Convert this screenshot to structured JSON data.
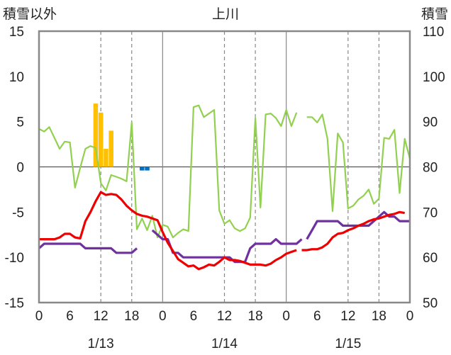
{
  "chart_data": {
    "type": "line",
    "title": "上川",
    "ylabel_left": "積雪以外",
    "ylabel_right": "積雪",
    "ylim_left": [
      -15,
      15
    ],
    "ylim_right": [
      50,
      110
    ],
    "yticks_left": [
      15,
      10,
      5,
      0,
      -5,
      -10,
      -15
    ],
    "yticks_right": [
      110,
      100,
      90,
      80,
      70,
      60,
      50
    ],
    "x_range_hours": [
      0,
      72
    ],
    "x_tick_labels": [
      "0",
      "6",
      "12",
      "18",
      "0",
      "6",
      "12",
      "18",
      "0",
      "6",
      "12",
      "18",
      "0"
    ],
    "day_labels": [
      {
        "label": "1/13",
        "hour": 12
      },
      {
        "label": "1/14",
        "hour": 36
      },
      {
        "label": "1/15",
        "hour": 60
      }
    ],
    "day_boundaries": [
      24,
      48
    ],
    "dashed_gridlines": [
      12,
      18,
      36,
      42,
      60,
      66
    ],
    "colors": {
      "temperature": "#ee0000",
      "snow_depth": "#7030a0",
      "wind": "#92d050",
      "snowfall": "#ffc000",
      "precip": "#0070c0",
      "frame": "#888888",
      "grid": "#888888"
    },
    "series": [
      {
        "key": "temperature",
        "axis": "left",
        "points": [
          [
            0,
            -8
          ],
          [
            1,
            -8
          ],
          [
            2,
            -8
          ],
          [
            3,
            -8
          ],
          [
            4,
            -7.8
          ],
          [
            5,
            -7.4
          ],
          [
            6,
            -7.4
          ],
          [
            7,
            -7.8
          ],
          [
            8,
            -7.9
          ],
          [
            9,
            -6
          ],
          [
            10,
            -5
          ],
          [
            11,
            -3.8
          ],
          [
            12,
            -2.8
          ],
          [
            13,
            -3.1
          ],
          [
            14,
            -3
          ],
          [
            15,
            -3.1
          ],
          [
            16,
            -3.6
          ],
          [
            17,
            -4.3
          ],
          [
            18,
            -4.8
          ],
          [
            19,
            -5.2
          ],
          [
            20,
            -5.4
          ],
          [
            21,
            -5.5
          ],
          [
            22,
            -5.7
          ],
          [
            23,
            -5.9
          ],
          [
            24,
            -7.2
          ],
          [
            25,
            -8.4
          ],
          [
            26,
            -9.3
          ],
          [
            27,
            -10.2
          ],
          [
            28,
            -10.6
          ],
          [
            29,
            -11
          ],
          [
            30,
            -10.9
          ],
          [
            31,
            -11.3
          ],
          [
            32,
            -11.1
          ],
          [
            33,
            -10.8
          ],
          [
            34,
            -10.9
          ],
          [
            35,
            -10.5
          ],
          [
            36,
            -10
          ],
          [
            37,
            -10.3
          ],
          [
            38,
            -10.3
          ],
          [
            39,
            -10.4
          ],
          [
            40,
            -10.6
          ],
          [
            41,
            -10.8
          ],
          [
            42,
            -10.8
          ],
          [
            43,
            -10.8
          ],
          [
            44,
            -10.9
          ],
          [
            45,
            -10.7
          ],
          [
            46,
            -10.3
          ],
          [
            47,
            -10
          ],
          [
            48,
            -9.6
          ],
          [
            49,
            -9.4
          ],
          [
            50,
            -9.2
          ],
          null,
          [
            51,
            -9.2
          ],
          [
            52,
            -9.2
          ],
          [
            53,
            -9.1
          ],
          [
            54,
            -9.1
          ],
          [
            55,
            -8.9
          ],
          [
            56,
            -8.5
          ],
          [
            57,
            -7.8
          ],
          [
            58,
            -7.4
          ],
          [
            59,
            -7.3
          ],
          [
            60,
            -7
          ],
          [
            61,
            -6.8
          ],
          [
            62,
            -6.5
          ],
          [
            63,
            -6.3
          ],
          [
            64,
            -6
          ],
          [
            65,
            -5.8
          ],
          [
            66,
            -5.7
          ],
          [
            67,
            -5.5
          ],
          [
            68,
            -5.3
          ],
          [
            69,
            -5.2
          ],
          [
            70,
            -5
          ],
          [
            71,
            -5.1
          ]
        ]
      },
      {
        "key": "snow_depth",
        "axis": "right",
        "points": [
          [
            0,
            62
          ],
          [
            1,
            63
          ],
          [
            2,
            63
          ],
          [
            3,
            63
          ],
          [
            4,
            63
          ],
          [
            5,
            63
          ],
          [
            6,
            63
          ],
          [
            7,
            63
          ],
          [
            8,
            63
          ],
          [
            9,
            62
          ],
          [
            10,
            62
          ],
          [
            11,
            62
          ],
          [
            12,
            62
          ],
          [
            13,
            62
          ],
          [
            14,
            62
          ],
          [
            15,
            61
          ],
          [
            16,
            61
          ],
          [
            17,
            61
          ],
          [
            18,
            61
          ],
          [
            19,
            62
          ],
          null,
          [
            21,
            null
          ],
          [
            22,
            66
          ],
          [
            23,
            65
          ],
          [
            24,
            64
          ],
          [
            25,
            64
          ],
          [
            26,
            61
          ],
          [
            27,
            61
          ],
          [
            28,
            60
          ],
          [
            29,
            60
          ],
          [
            30,
            60
          ],
          [
            31,
            60
          ],
          [
            32,
            60
          ],
          [
            33,
            60
          ],
          [
            34,
            60
          ],
          [
            35,
            60
          ],
          [
            36,
            60
          ],
          [
            37,
            60
          ],
          [
            38,
            59
          ],
          [
            39,
            59
          ],
          [
            40,
            59
          ],
          [
            41,
            62
          ],
          [
            42,
            63
          ],
          [
            43,
            63
          ],
          [
            44,
            63
          ],
          [
            45,
            63
          ],
          [
            46,
            64
          ],
          [
            47,
            63
          ],
          [
            48,
            63
          ],
          [
            49,
            63
          ],
          [
            50,
            63
          ],
          [
            51,
            64
          ],
          null,
          [
            52,
            64
          ],
          [
            53,
            66
          ],
          [
            54,
            68
          ],
          [
            55,
            68
          ],
          [
            56,
            68
          ],
          [
            57,
            68
          ],
          [
            58,
            68
          ],
          [
            59,
            67
          ],
          [
            60,
            67
          ],
          [
            61,
            67
          ],
          [
            62,
            67
          ],
          [
            63,
            67
          ],
          [
            64,
            67
          ],
          [
            65,
            68
          ],
          [
            66,
            69
          ],
          [
            67,
            70
          ],
          [
            68,
            69
          ],
          [
            69,
            69
          ],
          [
            70,
            68
          ],
          [
            71,
            68
          ],
          [
            72,
            68
          ]
        ]
      },
      {
        "key": "wind",
        "axis": "left",
        "points": [
          [
            0,
            4.2
          ],
          [
            1,
            3.9
          ],
          [
            2,
            4.4
          ],
          [
            3,
            3.2
          ],
          [
            4,
            2
          ],
          [
            5,
            2.8
          ],
          [
            6,
            2.7
          ],
          [
            7,
            -2.3
          ],
          [
            8,
            -0.1
          ],
          [
            9,
            2
          ],
          [
            10,
            2.3
          ],
          [
            11,
            2.1
          ],
          [
            12,
            -1.8
          ],
          [
            13,
            -2.6
          ],
          [
            14,
            -0.9
          ],
          [
            15,
            -1.1
          ],
          [
            16,
            -1.3
          ],
          [
            17,
            -1.6
          ],
          [
            18,
            4.9
          ],
          [
            19,
            -6.9
          ],
          [
            20,
            -5.7
          ],
          [
            21,
            -7
          ],
          [
            22,
            -5.4
          ],
          [
            23,
            -7.8
          ],
          [
            24,
            -6.4
          ],
          [
            25,
            -6.6
          ],
          [
            26,
            -7.8
          ],
          [
            27,
            -7.3
          ],
          [
            28,
            -6.9
          ],
          [
            29,
            -7.1
          ],
          [
            30,
            6.6
          ],
          [
            31,
            6.8
          ],
          [
            32,
            5.5
          ],
          [
            33,
            5.9
          ],
          [
            34,
            6.3
          ],
          [
            35,
            -4.8
          ],
          [
            36,
            -6.3
          ],
          [
            37,
            -5.9
          ],
          [
            38,
            -6.8
          ],
          [
            39,
            -7.1
          ],
          [
            40,
            -6.8
          ],
          [
            41,
            -5.6
          ],
          [
            42,
            5.4
          ],
          [
            43,
            -4.5
          ],
          [
            44,
            5.8
          ],
          [
            45,
            5.9
          ],
          [
            46,
            5.4
          ],
          [
            47,
            4.5
          ],
          [
            48,
            6.3
          ],
          [
            49,
            4.5
          ],
          [
            50,
            6
          ],
          null,
          [
            52,
            5.5
          ],
          [
            53,
            5.5
          ],
          [
            54,
            4.9
          ],
          [
            55,
            5.8
          ],
          [
            56,
            3.1
          ],
          [
            57,
            -4.9
          ],
          [
            58,
            3.7
          ],
          [
            59,
            2.7
          ],
          [
            60,
            -4.6
          ],
          [
            61,
            -4.3
          ],
          [
            62,
            -3.6
          ],
          [
            63,
            -3.2
          ],
          [
            64,
            -2.5
          ],
          [
            65,
            -4.1
          ],
          [
            66,
            -3.5
          ],
          [
            67,
            3.2
          ],
          [
            68,
            3.1
          ],
          [
            69,
            4.1
          ],
          [
            70,
            -2.9
          ],
          [
            71,
            3.1
          ],
          [
            72,
            0.9
          ]
        ]
      },
      {
        "key": "snowfall",
        "axis": "left",
        "type": "bar",
        "bars": [
          [
            11,
            7
          ],
          [
            12,
            6
          ],
          [
            13,
            2
          ],
          [
            14,
            4
          ]
        ]
      },
      {
        "key": "precip",
        "axis": "left",
        "type": "bar",
        "bars": [
          [
            20,
            -0.4
          ],
          [
            21,
            -0.4
          ]
        ]
      }
    ]
  }
}
